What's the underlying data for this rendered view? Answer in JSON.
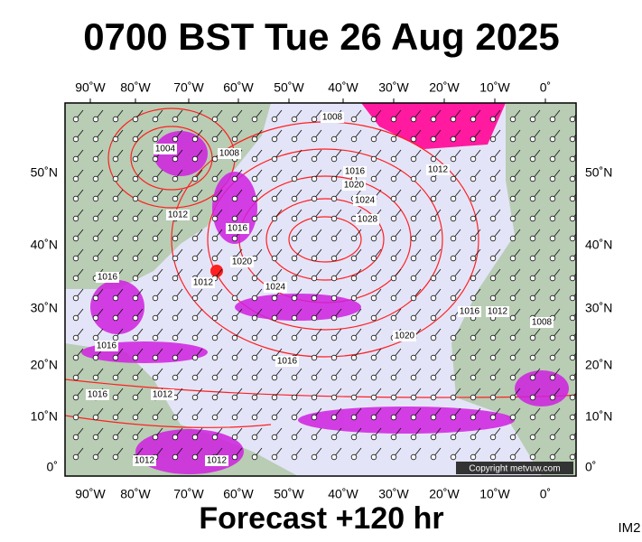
{
  "header": {
    "title": "0700 BST Tue 26 Aug 2025"
  },
  "map": {
    "longitude_labels": [
      "90˚W",
      "80˚W",
      "70˚W",
      "60˚W",
      "50˚W",
      "40˚W",
      "30˚W",
      "20˚W",
      "10˚W",
      "0˚"
    ],
    "latitude_labels": [
      "50˚N",
      "40˚N",
      "30˚N",
      "20˚N",
      "10˚N",
      "0˚"
    ],
    "isobar_labels": [
      "1004",
      "1008",
      "1016",
      "1020",
      "1024",
      "1028",
      "1012",
      "1012",
      "1016",
      "1020",
      "1012",
      "1024",
      "1016",
      "1016",
      "1012",
      "1008",
      "1020",
      "1016",
      "1016",
      "1016",
      "1012",
      "1012",
      "1012",
      "1008"
    ],
    "copyright": "Copyright metvuw.com"
  },
  "footer": {
    "forecast": "Forecast +120 hr",
    "image_id": "IM2"
  }
}
